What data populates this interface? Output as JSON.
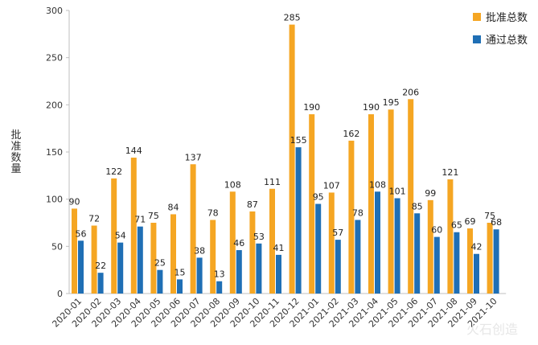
{
  "chart_data": {
    "type": "bar",
    "ylabel": "批准数量",
    "ylim": [
      0,
      300
    ],
    "yticks": [
      0,
      50,
      100,
      150,
      200,
      250,
      300
    ],
    "grid": false,
    "legend_position": "top-right",
    "categories": [
      "2020-01",
      "2020-02",
      "2020-03",
      "2020-04",
      "2020-05",
      "2020-06",
      "2020-07",
      "2020-08",
      "2020-09",
      "2020-10",
      "2020-11",
      "2020-12",
      "2021-01",
      "2021-02",
      "2021-03",
      "2021-04",
      "2021-05",
      "2021-06",
      "2021-07",
      "2021-08",
      "2021-09",
      "2021-10"
    ],
    "series": [
      {
        "name": "批准总数",
        "color": "#F5A623",
        "values": [
          90,
          72,
          122,
          144,
          75,
          84,
          137,
          78,
          108,
          87,
          111,
          285,
          190,
          107,
          162,
          190,
          195,
          206,
          99,
          121,
          69,
          75
        ]
      },
      {
        "name": "通过总数",
        "color": "#1F6FB5",
        "values": [
          56,
          22,
          54,
          71,
          25,
          15,
          38,
          13,
          46,
          53,
          41,
          155,
          95,
          57,
          78,
          108,
          101,
          85,
          60,
          65,
          42,
          68
        ]
      }
    ]
  },
  "watermark": "火石创造"
}
